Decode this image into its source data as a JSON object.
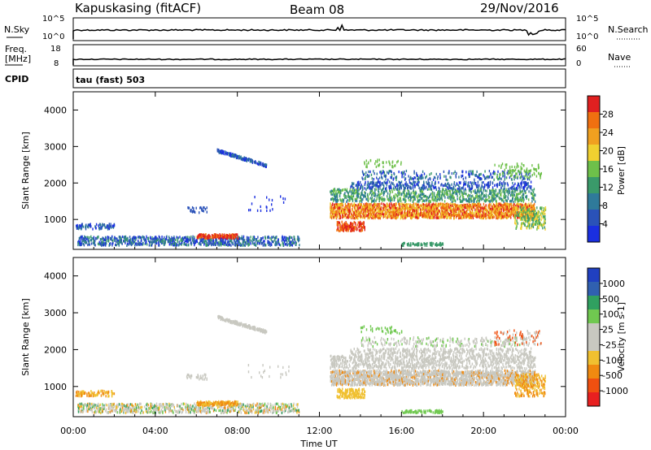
{
  "header": {
    "station": "Kapuskasing (fitACF)",
    "beam": "Beam 08",
    "date": "29/Nov/2016"
  },
  "strip1": {
    "left_label": "N.Sky",
    "right_label": "N.Search",
    "left_ticks": [
      "10^5",
      "10^0"
    ],
    "right_ticks": [
      "10^5",
      "10^0"
    ]
  },
  "strip2": {
    "left_label_1": "Freq.",
    "left_label_2": "[MHz]",
    "right_label": "Nave",
    "left_ticks": [
      "18",
      "8"
    ],
    "right_ticks": [
      "60",
      "0"
    ]
  },
  "cpid": {
    "label": "CPID",
    "value": "tau (fast) 503"
  },
  "colors": {
    "power": [
      "#1a2fe0",
      "#2a52b8",
      "#2f7a9a",
      "#3a9a6a",
      "#6ec04a",
      "#f0d030",
      "#f0a020",
      "#f07010",
      "#e02020"
    ],
    "velocity": [
      "#e82020",
      "#f05010",
      "#f08a10",
      "#f0c030",
      "#c8c8c0",
      "#c8c8c0",
      "#70c850",
      "#30a060",
      "#3060b0",
      "#2040c0"
    ]
  },
  "chart_data": [
    {
      "type": "heatmap",
      "quantity": "Power",
      "ylabel": "Slant Range [km]",
      "colorbar_label": "Power [dB]",
      "colorbar_ticks": [
        "28",
        "24",
        "20",
        "16",
        "12",
        "8",
        "4"
      ],
      "x_ticks": [
        "00:00",
        "04:00",
        "08:00",
        "12:00",
        "16:00",
        "20:00",
        "00:00"
      ],
      "y_ticks": [
        "4000",
        "3000",
        "2000",
        "1000"
      ],
      "xlim_hours": [
        0,
        24
      ],
      "ylim_km": [
        180,
        4500
      ]
    },
    {
      "type": "heatmap",
      "quantity": "Velocity",
      "ylabel": "Slant Range [km]",
      "xlabel": "Time UT",
      "colorbar_label": "Velocity [m s-1]",
      "colorbar_ticks": [
        "1000",
        "500",
        "100",
        "25",
        "-25",
        "-100",
        "-500",
        "-1000"
      ],
      "x_ticks": [
        "00:00",
        "04:00",
        "08:00",
        "12:00",
        "16:00",
        "20:00",
        "00:00"
      ],
      "y_ticks": [
        "4000",
        "3000",
        "2000",
        "1000"
      ],
      "xlim_hours": [
        0,
        24
      ],
      "ylim_km": [
        180,
        4500
      ]
    }
  ]
}
